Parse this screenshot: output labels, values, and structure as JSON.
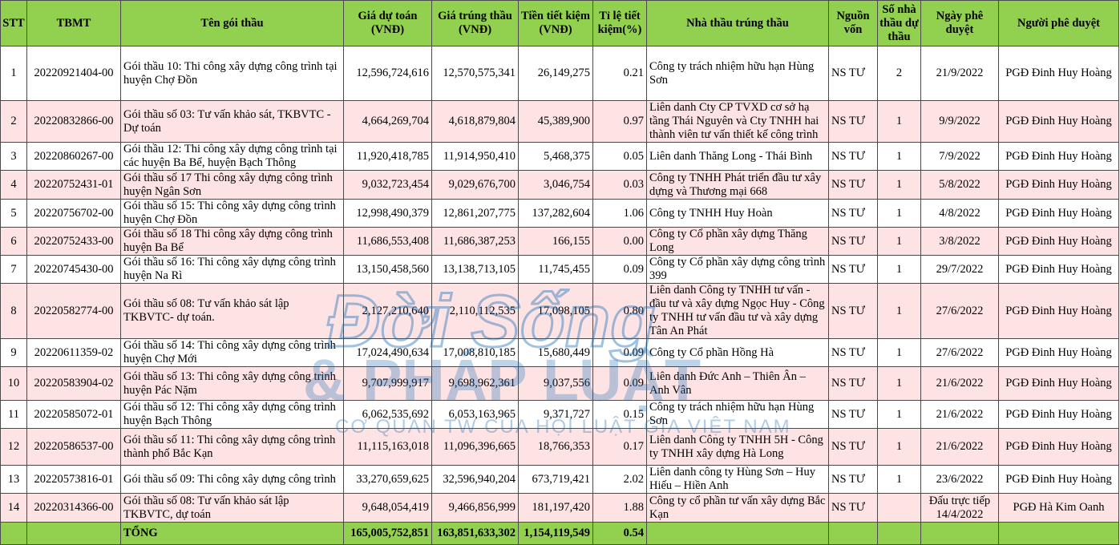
{
  "header": {
    "stt": "STT",
    "tbmt": "TBMT",
    "ten_goi_thau": "Tên gói thầu",
    "gia_du_toan": "Giá dự toán (VNĐ)",
    "gia_trung_thau": "Giá trúng thầu (VNĐ)",
    "tien_tiet_kiem": "Tiền tiết kiệm (VNĐ)",
    "ti_le": "Tỉ lệ tiết kiệm(%)",
    "nha_thau": "Nhà thầu trúng thầu",
    "nguon_von": "Nguồn vốn",
    "so_nha_thau": "Số nhà thầu dự thầu",
    "ngay_phe_duyet": "Ngày phê duyệt",
    "nguoi_phe_duyet": "Người phê duyệt"
  },
  "rows": [
    {
      "stt": "1",
      "tbmt": "20220921404-00",
      "ten": "Gói thầu 10: Thi công xây dựng công trình tại huyện Chợ Đồn",
      "du_toan": "12,596,724,616",
      "trung_thau": "12,570,575,341",
      "tiet_kiem": "26,149,275",
      "ti_le": "0.21",
      "nha_thau": "Công ty trách nhiệm hữu hạn Hùng Sơn",
      "nguon": "NS TƯ",
      "so_nt": "2",
      "ngay": "21/9/2022",
      "nguoi": "PGĐ Đinh Huy Hoàng"
    },
    {
      "stt": "2",
      "tbmt": "20220832866-00",
      "ten": "Gói thầu số 03: Tư vấn khảo sát, TKBVTC - Dự toán",
      "du_toan": "4,664,269,704",
      "trung_thau": "4,618,879,804",
      "tiet_kiem": "45,389,900",
      "ti_le": "0.97",
      "nha_thau": "Liên danh Cty CP TVXD cơ sở hạ tầng Thái Nguyên và Cty TNHH hai thành viên tư vấn thiết kế công trình",
      "nguon": "NS TƯ",
      "so_nt": "1",
      "ngay": "9/9/2022",
      "nguoi": "PGĐ Đinh Huy Hoàng"
    },
    {
      "stt": "3",
      "tbmt": "20220860267-00",
      "ten": "Gói thầu 12: Thi công xây dựng công trình tại các huyện Ba Bể, huyện Bạch Thông",
      "du_toan": "11,920,418,785",
      "trung_thau": "11,914,950,410",
      "tiet_kiem": "5,468,375",
      "ti_le": "0.05",
      "nha_thau": "Liên danh Thăng Long - Thái Bình",
      "nguon": "NS TƯ",
      "so_nt": "1",
      "ngay": "7/9/2022",
      "nguoi": "PGĐ Đinh Huy Hoàng"
    },
    {
      "stt": "4",
      "tbmt": "20220752431-01",
      "ten": "Gói thầu số 17 Thi công xây dựng công trình huyện Ngân Sơn",
      "du_toan": "9,032,723,454",
      "trung_thau": "9,029,676,700",
      "tiet_kiem": "3,046,754",
      "ti_le": "0.03",
      "nha_thau": "Công ty TNHH Phát triển đầu tư xây dựng và Thương mại 668",
      "nguon": "NS TƯ",
      "so_nt": "1",
      "ngay": "5/8/2022",
      "nguoi": "PGĐ Đinh Huy Hoàng"
    },
    {
      "stt": "5",
      "tbmt": "20220756702-00",
      "ten": "Gói thầu số 15: Thi công xây dựng công trình huyện Chợ Đồn",
      "du_toan": "12,998,490,379",
      "trung_thau": "12,861,207,775",
      "tiet_kiem": "137,282,604",
      "ti_le": "1.06",
      "nha_thau": "Công ty TNHH Huy Hoàn",
      "nguon": "NS TƯ",
      "so_nt": "1",
      "ngay": "4/8/2022",
      "nguoi": "PGĐ Đinh Huy Hoàng"
    },
    {
      "stt": "6",
      "tbmt": "20220752433-00",
      "ten": "Gói thầu số 18 Thi công xây dựng công trình huyện Ba Bể",
      "du_toan": "11,686,553,408",
      "trung_thau": "11,686,387,253",
      "tiet_kiem": "166,155",
      "ti_le": "0.00",
      "nha_thau": "Công ty Cổ phần xây dựng Thăng Long",
      "nguon": "NS TƯ",
      "so_nt": "1",
      "ngay": "3/8/2022",
      "nguoi": "PGĐ Đinh Huy Hoàng"
    },
    {
      "stt": "7",
      "tbmt": "20220745430-00",
      "ten": "Gói thầu số 16: Thi công xây dựng công trình huyện Na Rì",
      "du_toan": "13,150,458,560",
      "trung_thau": "13,138,713,105",
      "tiet_kiem": "11,745,455",
      "ti_le": "0.09",
      "nha_thau": "Công ty Cổ phần xây dựng công trình 399",
      "nguon": "NS TƯ",
      "so_nt": "1",
      "ngay": "29/7/2022",
      "nguoi": "PGĐ Đinh Huy Hoàng"
    },
    {
      "stt": "8",
      "tbmt": "20220582774-00",
      "ten": "Gói thầu số 08: Tư vấn khảo sát lập TKBVTC- dự toán.",
      "du_toan": "2,127,210,640",
      "trung_thau": "2,110,112,535",
      "tiet_kiem": "17,098,105",
      "ti_le": "0.80",
      "nha_thau": "Liên danh Công ty TNHH tư vấn - đầu tư và xây dựng Ngọc Huy - Công ty TNHH tư vấn đầu tư và xây dựng Tân An Phát",
      "nguon": "NS TƯ",
      "so_nt": "1",
      "ngay": "27/6/2022",
      "nguoi": "PGĐ Đinh Huy Hoàng"
    },
    {
      "stt": "9",
      "tbmt": "20220611359-02",
      "ten": "Gói thầu số 14: Thi công xây dựng công trình huyện Chợ Mới",
      "du_toan": "17,024,490,634",
      "trung_thau": "17,008,810,185",
      "tiet_kiem": "15,680,449",
      "ti_le": "0.09",
      "nha_thau": "Công ty Cổ phần Hồng Hà",
      "nguon": "NS TƯ",
      "so_nt": "1",
      "ngay": "27/6/2022",
      "nguoi": "PGĐ Đinh Huy Hoàng"
    },
    {
      "stt": "10",
      "tbmt": "20220583904-02",
      "ten": "Gói thầu số 13: Thi công xây dựng công trình huyện Pác Nặm",
      "du_toan": "9,707,999,917",
      "trung_thau": "9,698,962,361",
      "tiet_kiem": "9,037,556",
      "ti_le": "0.09",
      "nha_thau": "Liên danh Đức Anh – Thiên Ân – Anh Vân",
      "nguon": "NS TƯ",
      "so_nt": "1",
      "ngay": "21/6/2022",
      "nguoi": "PGĐ Đinh Huy Hoàng"
    },
    {
      "stt": "11",
      "tbmt": "20220585072-01",
      "ten": "Gói thầu số 12: Thi công xây dựng công trình huyện Bạch Thông",
      "du_toan": "6,062,535,692",
      "trung_thau": "6,053,163,965",
      "tiet_kiem": "9,371,727",
      "ti_le": "0.15",
      "nha_thau": "Công ty trách nhiệm hữu hạn Hùng Sơn",
      "nguon": "NS TƯ",
      "so_nt": "1",
      "ngay": "21/6/2022",
      "nguoi": "PGĐ Đinh Huy Hoàng"
    },
    {
      "stt": "12",
      "tbmt": "20220586537-00",
      "ten": "Gói thầu số 11: Thi công xây dựng công trình thành phố Bắc Kạn",
      "du_toan": "11,115,163,018",
      "trung_thau": "11,096,396,665",
      "tiet_kiem": "18,766,353",
      "ti_le": "0.17",
      "nha_thau": "Liên danh Công ty TNHH 5H - Công ty TNHH xây dựng Hà Long",
      "nguon": "NS TƯ",
      "so_nt": "1",
      "ngay": "21/6/2022",
      "nguoi": "PGĐ Đinh Huy Hoàng"
    },
    {
      "stt": "13",
      "tbmt": "20220573816-01",
      "ten": "Gói thầu số 09: Thi công xây dựng công trình",
      "du_toan": "33,270,659,625",
      "trung_thau": "32,596,940,204",
      "tiet_kiem": "673,719,421",
      "ti_le": "2.02",
      "nha_thau": "Liên danh công ty Hùng Sơn – Huy Hiếu – Hiền Anh",
      "nguon": "NS TƯ",
      "so_nt": "1",
      "ngay": "23/6/2022",
      "nguoi": "PGĐ Đinh Huy Hoàng"
    },
    {
      "stt": "14",
      "tbmt": "20220314366-00",
      "ten": "Gói thầu số 08: Tư vấn khảo sát lập TKBVTC, dự toán",
      "du_toan": "9,648,054,419",
      "trung_thau": "9,466,856,999",
      "tiet_kiem": "181,197,420",
      "ti_le": "1.88",
      "nha_thau": "Công ty cổ phần tư vấn xây dựng Bắc Kạn",
      "nguon": "NS TƯ",
      "so_nt": "",
      "ngay": "Đấu trực tiếp 14/4/2022",
      "nguoi": "PGĐ Hà Kim Oanh"
    }
  ],
  "total": {
    "label": "TỔNG",
    "du_toan": "165,005,752,851",
    "trung_thau": "163,851,633,302",
    "tiet_kiem": "1,154,119,549",
    "ti_le": "0.54"
  },
  "watermark": {
    "line1": "Đời Sống",
    "line2": "& PHÁP LUẬT",
    "line3": "CƠ QUAN TW CỦA HỘI LUẬT GIA VIỆT NAM",
    "color": "#1f6fb8"
  },
  "row_heights": [
    68,
    48,
    34,
    36,
    30,
    34,
    32,
    62,
    34,
    42,
    34,
    46,
    30,
    36
  ]
}
